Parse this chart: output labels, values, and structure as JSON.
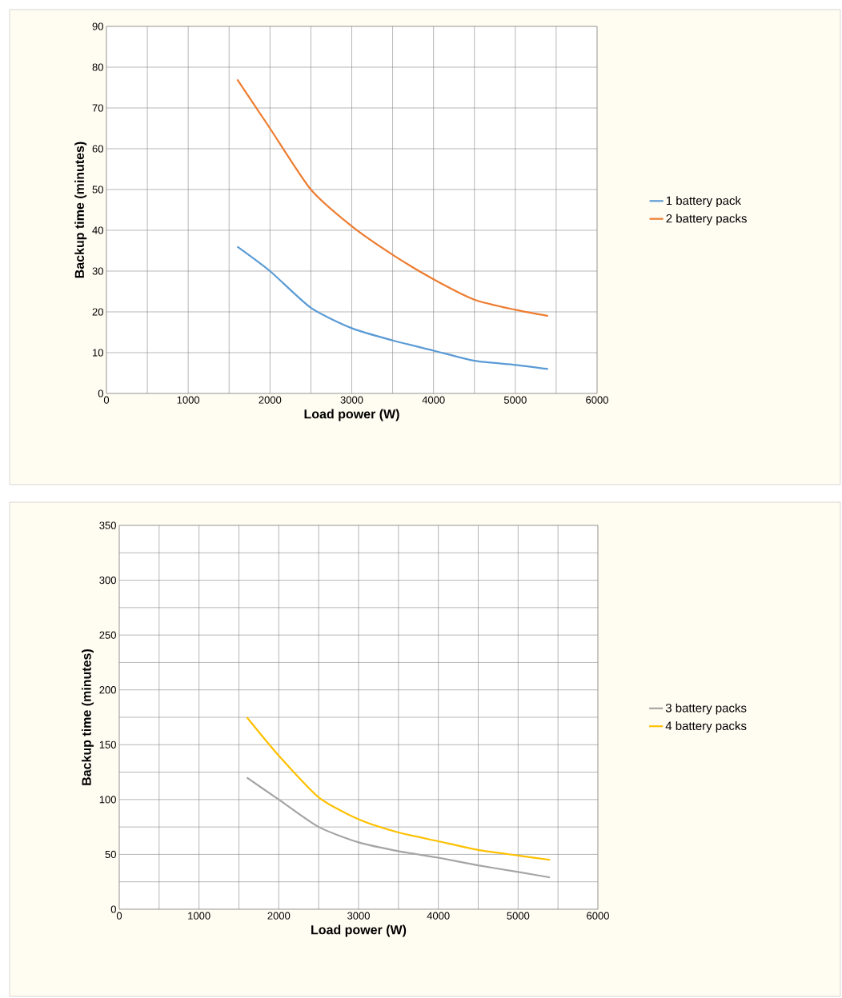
{
  "chart_data": [
    {
      "type": "line",
      "xlabel": "Load power (W)",
      "ylabel": "Backup time (minutes)",
      "x": [
        1600,
        2000,
        2500,
        3000,
        3500,
        4000,
        4500,
        5000,
        5400
      ],
      "series": [
        {
          "name": "1 battery pack",
          "color": "#5b9bd5",
          "values": [
            36,
            30,
            21,
            16,
            13,
            10.5,
            8,
            7,
            6
          ]
        },
        {
          "name": "2 battery packs",
          "color": "#ed7d31",
          "values": [
            77,
            65,
            50,
            41,
            34,
            28,
            23,
            20.5,
            19
          ]
        }
      ],
      "xlim": [
        0,
        6000
      ],
      "ylim": [
        0,
        90
      ],
      "xticks": [
        0,
        {
          "value": 500,
          "label": null
        },
        1000,
        {
          "value": 1500,
          "label": null
        },
        2000,
        {
          "value": 2500,
          "label": null
        },
        3000,
        {
          "value": 3500,
          "label": null
        },
        4000,
        {
          "value": 4500,
          "label": null
        },
        5000,
        {
          "value": 5500,
          "label": null
        },
        6000
      ],
      "yticks": [
        0,
        10,
        20,
        30,
        40,
        50,
        60,
        70,
        80,
        90
      ],
      "grid": true,
      "legend": "right"
    },
    {
      "type": "line",
      "xlabel": "Load power (W)",
      "ylabel": "Backup time (minutes)",
      "x": [
        1600,
        2000,
        2500,
        3000,
        3500,
        4000,
        4500,
        5000,
        5400
      ],
      "series": [
        {
          "name": "3 battery packs",
          "color": "#a5a5a5",
          "values": [
            120,
            100,
            75,
            61,
            53,
            47,
            40,
            34,
            29
          ]
        },
        {
          "name": "4 battery packs",
          "color": "#ffc000",
          "values": [
            175,
            140,
            102,
            82,
            70,
            62,
            54,
            49,
            45
          ]
        }
      ],
      "xlim": [
        0,
        6000
      ],
      "ylim": [
        0,
        350
      ],
      "xticks": [
        0,
        {
          "value": 500,
          "label": null
        },
        1000,
        {
          "value": 1500,
          "label": null
        },
        2000,
        {
          "value": 2500,
          "label": null
        },
        3000,
        {
          "value": 3500,
          "label": null
        },
        4000,
        {
          "value": 4500,
          "label": null
        },
        5000,
        {
          "value": 5500,
          "label": null
        },
        6000
      ],
      "yticks": [
        0,
        {
          "value": 25,
          "label": null
        },
        50,
        {
          "value": 75,
          "label": null
        },
        100,
        {
          "value": 125,
          "label": null
        },
        150,
        {
          "value": 175,
          "label": null
        },
        200,
        {
          "value": 225,
          "label": null
        },
        250,
        {
          "value": 275,
          "label": null
        },
        300,
        {
          "value": 325,
          "label": null
        },
        350
      ],
      "grid": true,
      "legend": "right"
    }
  ]
}
